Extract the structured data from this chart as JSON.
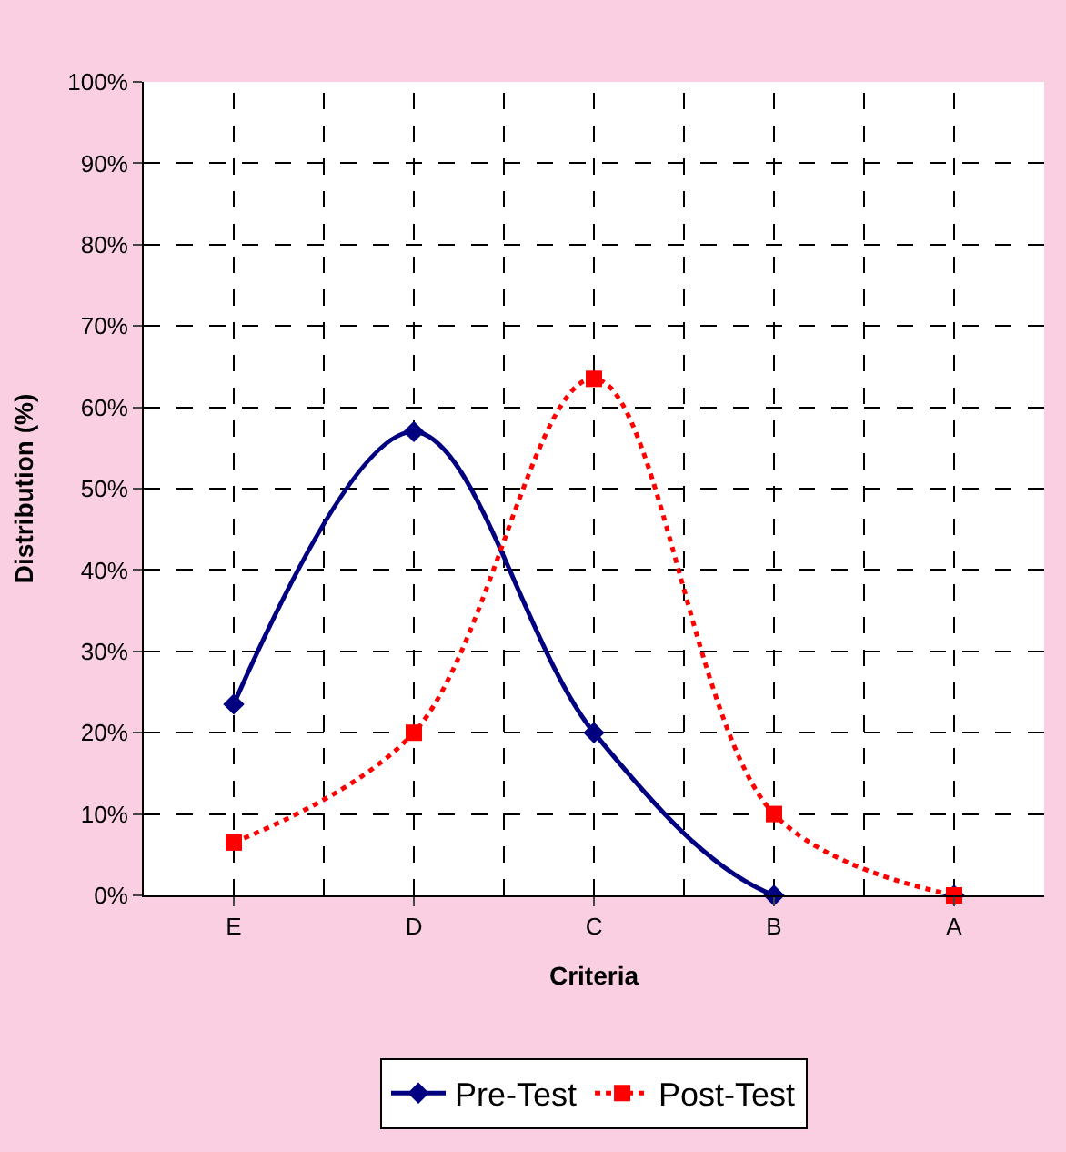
{
  "chart_data": {
    "type": "line",
    "xlabel": "Criteria",
    "ylabel": "Distribution (%)",
    "categories": [
      "E",
      "D",
      "C",
      "B",
      "A"
    ],
    "series": [
      {
        "name": "Pre-Test",
        "color": "#000080",
        "values": [
          23.5,
          57,
          20,
          0,
          0
        ],
        "marker": "diamond",
        "line_style": "solid"
      },
      {
        "name": "Post-Test",
        "color": "#ff0000",
        "values": [
          6.5,
          20,
          63.5,
          10,
          0
        ],
        "marker": "square",
        "line_style": "dotted"
      }
    ],
    "ylim": [
      0,
      100
    ],
    "yticks": [
      {
        "value": 0,
        "label": "0%"
      },
      {
        "value": 10,
        "label": "10%"
      },
      {
        "value": 20,
        "label": "20%"
      },
      {
        "value": 30,
        "label": "30%"
      },
      {
        "value": 40,
        "label": "40%"
      },
      {
        "value": 50,
        "label": "50%"
      },
      {
        "value": 60,
        "label": "60%"
      },
      {
        "value": 70,
        "label": "70%"
      },
      {
        "value": 80,
        "label": "80%"
      },
      {
        "value": 90,
        "label": "90%"
      },
      {
        "value": 100,
        "label": "100%"
      }
    ],
    "grid": true,
    "legend": "bottom"
  }
}
